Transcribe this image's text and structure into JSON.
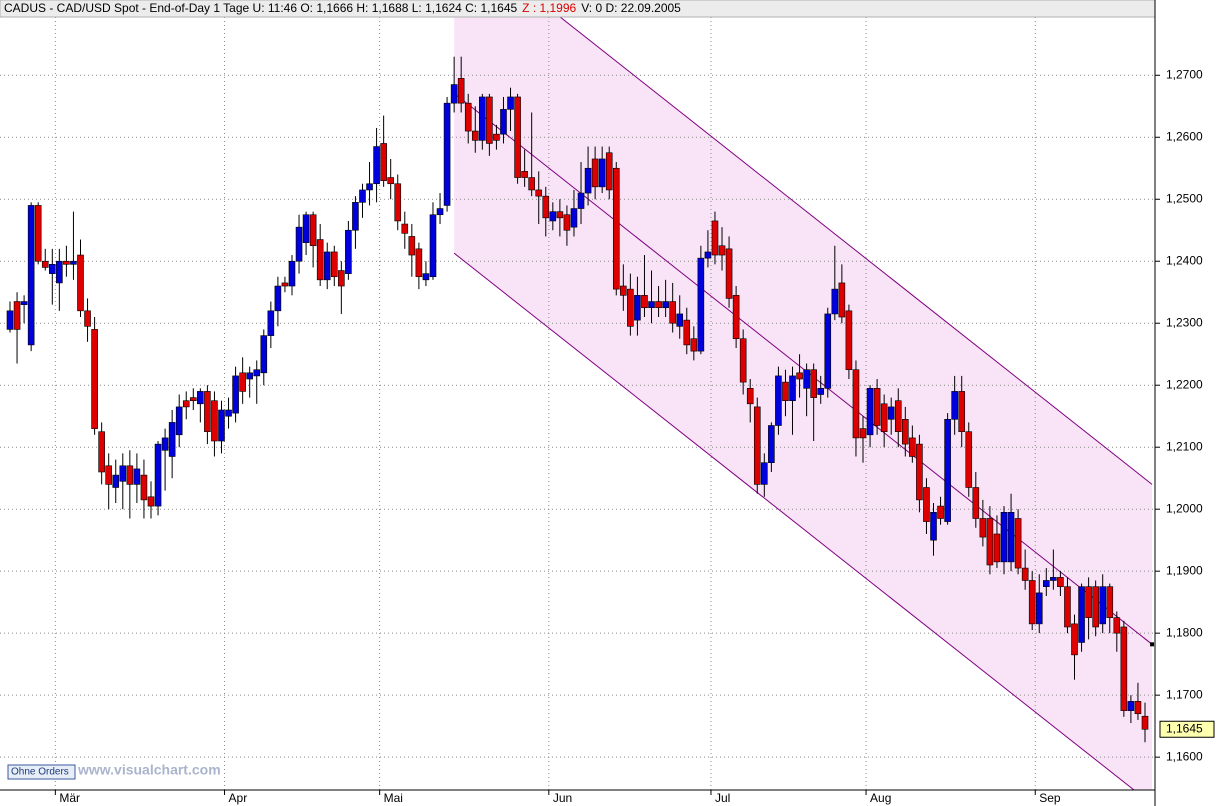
{
  "chart_data": {
    "type": "candlestick",
    "title": "CADUS - CAD/USD Spot - End-of-Day 1 Tage U: 11:46 O: 1,1666 H: 1,1688 L: 1,1624 C: 1,1645",
    "title_z": "Z : 1,1996",
    "title_tail": "V: 0 D: 22.09.2005",
    "button": "Ohne Orders",
    "watermark": "www.visualchart.com",
    "up_color": "#0000dd",
    "down_color": "#dd0000",
    "channel_color": "#f8e4f6",
    "channel_line_color": "#800080",
    "grid": true,
    "ylim": [
      1.1547,
      1.2794
    ],
    "yticks": [
      {
        "value": 1.16,
        "label": "1,1600"
      },
      {
        "value": 1.17,
        "label": "1,1700"
      },
      {
        "value": 1.18,
        "label": "1,1800"
      },
      {
        "value": 1.19,
        "label": "1,1900"
      },
      {
        "value": 1.2,
        "label": "1,2000"
      },
      {
        "value": 1.21,
        "label": "1,2100"
      },
      {
        "value": 1.22,
        "label": "1,2200"
      },
      {
        "value": 1.23,
        "label": "1,2300"
      },
      {
        "value": 1.24,
        "label": "1,2400"
      },
      {
        "value": 1.25,
        "label": "1,2500"
      },
      {
        "value": 1.26,
        "label": "1,2600"
      },
      {
        "value": 1.27,
        "label": "1,2700"
      }
    ],
    "last_price_label": "1,1645",
    "categories": [
      null,
      null,
      null,
      null,
      null,
      null,
      null,
      "Mär",
      null,
      null,
      null,
      null,
      null,
      null,
      null,
      null,
      null,
      null,
      null,
      null,
      null,
      null,
      null,
      null,
      null,
      null,
      null,
      null,
      null,
      null,
      null,
      "Apr",
      null,
      null,
      null,
      null,
      null,
      null,
      null,
      null,
      null,
      null,
      null,
      null,
      null,
      null,
      null,
      null,
      null,
      null,
      null,
      null,
      null,
      "Mai",
      null,
      null,
      null,
      null,
      null,
      null,
      null,
      null,
      null,
      null,
      null,
      null,
      null,
      null,
      null,
      null,
      null,
      null,
      null,
      null,
      null,
      null,
      null,
      "Jun",
      null,
      null,
      null,
      null,
      null,
      null,
      null,
      null,
      null,
      null,
      null,
      null,
      null,
      null,
      null,
      null,
      null,
      null,
      null,
      null,
      null,
      null,
      "Jul",
      null,
      null,
      null,
      null,
      null,
      null,
      null,
      null,
      null,
      null,
      null,
      null,
      null,
      null,
      null,
      null,
      null,
      null,
      null,
      null,
      null,
      "Aug",
      null,
      null,
      null,
      null,
      null,
      null,
      null,
      null,
      null,
      null,
      null,
      null,
      null,
      null,
      null,
      null,
      null,
      null,
      null,
      null,
      null,
      null,
      null,
      "Sep",
      null,
      null,
      null,
      null,
      null,
      null,
      null,
      null,
      null,
      null,
      null,
      null,
      null,
      null,
      null
    ],
    "ohlc": [
      [
        1.229,
        1.2335,
        1.2285,
        1.232
      ],
      [
        1.2335,
        1.235,
        1.2235,
        1.229
      ],
      [
        1.233,
        1.2345,
        1.23,
        1.2335
      ],
      [
        1.2265,
        1.2495,
        1.2255,
        1.249
      ],
      [
        1.249,
        1.2495,
        1.2395,
        1.24
      ],
      [
        1.24,
        1.242,
        1.2385,
        1.239
      ],
      [
        1.238,
        1.242,
        1.233,
        1.2395
      ],
      [
        1.2365,
        1.242,
        1.232,
        1.24
      ],
      [
        1.24,
        1.2425,
        1.2375,
        1.2395
      ],
      [
        1.2395,
        1.248,
        1.237,
        1.24
      ],
      [
        1.241,
        1.2435,
        1.231,
        1.232
      ],
      [
        1.232,
        1.234,
        1.227,
        1.2295
      ],
      [
        1.229,
        1.231,
        1.212,
        1.213
      ],
      [
        1.2125,
        1.214,
        1.204,
        1.206
      ],
      [
        1.207,
        1.209,
        1.2,
        1.204
      ],
      [
        1.2035,
        1.208,
        1.201,
        1.2055
      ],
      [
        1.2045,
        1.209,
        1.2,
        1.207
      ],
      [
        1.207,
        1.2095,
        1.1985,
        1.204
      ],
      [
        1.204,
        1.209,
        1.201,
        1.2065
      ],
      [
        1.2055,
        1.208,
        1.1985,
        1.2015
      ],
      [
        1.202,
        1.2045,
        1.1985,
        1.2005
      ],
      [
        1.2005,
        1.211,
        1.199,
        1.2105
      ],
      [
        1.2095,
        1.213,
        1.203,
        1.2115
      ],
      [
        1.2085,
        1.216,
        1.205,
        1.214
      ],
      [
        1.212,
        1.2185,
        1.21,
        1.2165
      ],
      [
        1.2175,
        1.219,
        1.2145,
        1.2165
      ],
      [
        1.218,
        1.2195,
        1.216,
        1.2175
      ],
      [
        1.217,
        1.2195,
        1.214,
        1.219
      ],
      [
        1.219,
        1.22,
        1.2105,
        1.2125
      ],
      [
        1.2175,
        1.219,
        1.2085,
        1.211
      ],
      [
        1.211,
        1.2175,
        1.209,
        1.216
      ],
      [
        1.215,
        1.218,
        1.213,
        1.216
      ],
      [
        1.2155,
        1.223,
        1.214,
        1.2215
      ],
      [
        1.222,
        1.2245,
        1.217,
        1.219
      ],
      [
        1.221,
        1.223,
        1.218,
        1.222
      ],
      [
        1.2215,
        1.224,
        1.217,
        1.2225
      ],
      [
        1.222,
        1.229,
        1.22,
        1.228
      ],
      [
        1.228,
        1.2335,
        1.226,
        1.232
      ],
      [
        1.232,
        1.2375,
        1.2295,
        1.236
      ],
      [
        1.2365,
        1.2375,
        1.235,
        1.236
      ],
      [
        1.236,
        1.241,
        1.2345,
        1.24
      ],
      [
        1.24,
        1.2475,
        1.238,
        1.2455
      ],
      [
        1.243,
        1.248,
        1.241,
        1.2475
      ],
      [
        1.2475,
        1.248,
        1.239,
        1.2425
      ],
      [
        1.2435,
        1.246,
        1.236,
        1.237
      ],
      [
        1.237,
        1.243,
        1.2355,
        1.2415
      ],
      [
        1.2415,
        1.2425,
        1.236,
        1.2375
      ],
      [
        1.2385,
        1.24,
        1.2315,
        1.236
      ],
      [
        1.238,
        1.2465,
        1.237,
        1.245
      ],
      [
        1.245,
        1.2505,
        1.242,
        1.2495
      ],
      [
        1.2495,
        1.2525,
        1.247,
        1.2515
      ],
      [
        1.2515,
        1.256,
        1.249,
        1.2525
      ],
      [
        1.2525,
        1.2615,
        1.2495,
        1.2585
      ],
      [
        1.259,
        1.2635,
        1.252,
        1.253
      ],
      [
        1.2535,
        1.2565,
        1.25,
        1.2525
      ],
      [
        1.2525,
        1.254,
        1.245,
        1.2465
      ],
      [
        1.246,
        1.248,
        1.242,
        1.2445
      ],
      [
        1.244,
        1.246,
        1.2375,
        1.241
      ],
      [
        1.242,
        1.243,
        1.2355,
        1.2375
      ],
      [
        1.237,
        1.24,
        1.236,
        1.238
      ],
      [
        1.2375,
        1.2495,
        1.237,
        1.2475
      ],
      [
        1.2475,
        1.251,
        1.246,
        1.2485
      ],
      [
        1.249,
        1.2665,
        1.248,
        1.2655
      ],
      [
        1.2655,
        1.273,
        1.264,
        1.2685
      ],
      [
        1.2695,
        1.273,
        1.264,
        1.2655
      ],
      [
        1.2655,
        1.267,
        1.259,
        1.261
      ],
      [
        1.261,
        1.265,
        1.2575,
        1.2595
      ],
      [
        1.2595,
        1.267,
        1.258,
        1.2665
      ],
      [
        1.2665,
        1.267,
        1.257,
        1.259
      ],
      [
        1.2605,
        1.262,
        1.258,
        1.2595
      ],
      [
        1.2605,
        1.2665,
        1.259,
        1.2645
      ],
      [
        1.2645,
        1.268,
        1.261,
        1.2665
      ],
      [
        1.2665,
        1.267,
        1.2525,
        1.2535
      ],
      [
        1.2545,
        1.258,
        1.252,
        1.2535
      ],
      [
        1.2535,
        1.264,
        1.2505,
        1.2515
      ],
      [
        1.2515,
        1.2545,
        1.246,
        1.2505
      ],
      [
        1.2505,
        1.252,
        1.244,
        1.247
      ],
      [
        1.2465,
        1.2495,
        1.245,
        1.248
      ],
      [
        1.248,
        1.25,
        1.244,
        1.247
      ],
      [
        1.2475,
        1.249,
        1.2425,
        1.245
      ],
      [
        1.2455,
        1.2515,
        1.244,
        1.2485
      ],
      [
        1.2485,
        1.256,
        1.246,
        1.251
      ],
      [
        1.251,
        1.2585,
        1.249,
        1.255
      ],
      [
        1.2565,
        1.2585,
        1.25,
        1.252
      ],
      [
        1.252,
        1.2585,
        1.251,
        1.2565
      ],
      [
        1.2575,
        1.2585,
        1.25,
        1.2515
      ],
      [
        1.255,
        1.256,
        1.2345,
        1.2355
      ],
      [
        1.236,
        1.2395,
        1.232,
        1.2345
      ],
      [
        1.2355,
        1.238,
        1.228,
        1.2295
      ],
      [
        1.2305,
        1.2375,
        1.228,
        1.2345
      ],
      [
        1.2345,
        1.241,
        1.231,
        1.2325
      ],
      [
        1.2325,
        1.2385,
        1.23,
        1.2335
      ],
      [
        1.2335,
        1.236,
        1.231,
        1.2325
      ],
      [
        1.2325,
        1.237,
        1.231,
        1.2335
      ],
      [
        1.2335,
        1.2365,
        1.2285,
        1.23
      ],
      [
        1.2295,
        1.2345,
        1.2275,
        1.2315
      ],
      [
        1.2305,
        1.2325,
        1.225,
        1.2265
      ],
      [
        1.2275,
        1.2295,
        1.224,
        1.2255
      ],
      [
        1.2255,
        1.2425,
        1.225,
        1.2405
      ],
      [
        1.2405,
        1.245,
        1.239,
        1.2415
      ],
      [
        1.2465,
        1.248,
        1.2395,
        1.241
      ],
      [
        1.2425,
        1.2455,
        1.2385,
        1.241
      ],
      [
        1.242,
        1.244,
        1.2325,
        1.234
      ],
      [
        1.2345,
        1.236,
        1.226,
        1.2275
      ],
      [
        1.2275,
        1.229,
        1.2185,
        1.2205
      ],
      [
        1.2195,
        1.221,
        1.214,
        1.217
      ],
      [
        1.2165,
        1.218,
        1.2025,
        1.204
      ],
      [
        1.204,
        1.209,
        1.202,
        1.2075
      ],
      [
        1.2075,
        1.214,
        1.206,
        1.2135
      ],
      [
        1.2135,
        1.223,
        1.212,
        1.2215
      ],
      [
        1.2205,
        1.2225,
        1.215,
        1.2175
      ],
      [
        1.2175,
        1.223,
        1.212,
        1.2215
      ],
      [
        1.222,
        1.225,
        1.218,
        1.221
      ],
      [
        1.2195,
        1.2235,
        1.215,
        1.2225
      ],
      [
        1.2225,
        1.2235,
        1.211,
        1.218
      ],
      [
        1.2185,
        1.2215,
        1.217,
        1.2195
      ],
      [
        1.2195,
        1.2325,
        1.218,
        1.2315
      ],
      [
        1.2315,
        1.2425,
        1.2305,
        1.2355
      ],
      [
        1.2365,
        1.2395,
        1.23,
        1.231
      ],
      [
        1.232,
        1.233,
        1.221,
        1.2225
      ],
      [
        1.2225,
        1.224,
        1.2085,
        1.2115
      ],
      [
        1.213,
        1.215,
        1.2075,
        1.2115
      ],
      [
        1.212,
        1.22,
        1.21,
        1.2195
      ],
      [
        1.2195,
        1.221,
        1.212,
        1.2135
      ],
      [
        1.217,
        1.2185,
        1.21,
        1.2125
      ],
      [
        1.2145,
        1.218,
        1.212,
        1.2165
      ],
      [
        1.2175,
        1.2195,
        1.21,
        1.2125
      ],
      [
        1.2145,
        1.2165,
        1.2085,
        1.2105
      ],
      [
        1.2115,
        1.2135,
        1.2075,
        1.2085
      ],
      [
        1.2105,
        1.212,
        1.1995,
        1.2015
      ],
      [
        1.2035,
        1.205,
        1.196,
        1.198
      ],
      [
        1.195,
        1.201,
        1.1925,
        1.1995
      ],
      [
        1.2005,
        1.202,
        1.1975,
        1.1985
      ],
      [
        1.198,
        1.2155,
        1.1975,
        1.2145
      ],
      [
        1.2145,
        1.2215,
        1.212,
        1.219
      ],
      [
        1.219,
        1.2215,
        1.21,
        1.2125
      ],
      [
        1.2125,
        1.214,
        1.202,
        1.2035
      ],
      [
        1.2035,
        1.206,
        1.197,
        1.1985
      ],
      [
        1.1985,
        1.2015,
        1.194,
        1.1955
      ],
      [
        1.1985,
        1.2005,
        1.1895,
        1.191
      ],
      [
        1.196,
        1.199,
        1.1905,
        1.1915
      ],
      [
        1.1915,
        1.2005,
        1.1895,
        1.1995
      ],
      [
        1.1915,
        1.2025,
        1.19,
        1.1995
      ],
      [
        1.1985,
        1.2,
        1.1895,
        1.1905
      ],
      [
        1.1905,
        1.1935,
        1.187,
        1.1885
      ],
      [
        1.1885,
        1.19,
        1.1805,
        1.1815
      ],
      [
        1.1815,
        1.1895,
        1.18,
        1.1865
      ],
      [
        1.1875,
        1.1905,
        1.186,
        1.1885
      ],
      [
        1.1885,
        1.1935,
        1.187,
        1.189
      ],
      [
        1.189,
        1.19,
        1.186,
        1.1875
      ],
      [
        1.1875,
        1.189,
        1.18,
        1.181
      ],
      [
        1.1815,
        1.183,
        1.1725,
        1.1765
      ],
      [
        1.1785,
        1.188,
        1.177,
        1.1875
      ],
      [
        1.1875,
        1.189,
        1.179,
        1.1825
      ],
      [
        1.1875,
        1.1885,
        1.1795,
        1.181
      ],
      [
        1.1815,
        1.1895,
        1.18,
        1.1875
      ],
      [
        1.1875,
        1.188,
        1.18,
        1.1825
      ],
      [
        1.1825,
        1.1835,
        1.177,
        1.18
      ],
      [
        1.181,
        1.182,
        1.1665,
        1.1675
      ],
      [
        1.1675,
        1.17,
        1.1655,
        1.169
      ],
      [
        1.169,
        1.172,
        1.166,
        1.167
      ],
      [
        1.1666,
        1.1688,
        1.1624,
        1.1645
      ]
    ],
    "channel": {
      "x": [
        63,
        162
      ],
      "upper": [
        1.2929,
        1.204
      ],
      "middle": [
        1.2671,
        1.1782
      ],
      "lower": [
        1.2413,
        1.1524
      ]
    }
  }
}
